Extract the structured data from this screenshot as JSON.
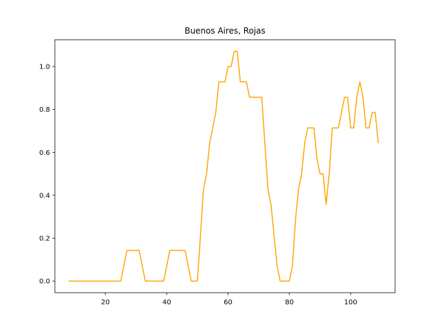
{
  "chart_data": {
    "type": "line",
    "title": "Buenos Aires, Rojas",
    "xlabel": "",
    "ylabel": "",
    "xlim": [
      3.5,
      114.5
    ],
    "ylim": [
      -0.054,
      1.125
    ],
    "xticks": [
      20,
      40,
      60,
      80,
      100
    ],
    "yticks": [
      0.0,
      0.2,
      0.4,
      0.6,
      0.8,
      1.0
    ],
    "ytick_labels": [
      "0.0",
      "0.2",
      "0.4",
      "0.6",
      "0.8",
      "1.0"
    ],
    "xtick_labels": [
      "20",
      "40",
      "60",
      "80",
      "100"
    ],
    "grid": false,
    "series": [
      {
        "color": "#ffa500",
        "x": [
          8,
          9,
          10,
          11,
          12,
          13,
          14,
          15,
          16,
          17,
          18,
          19,
          20,
          21,
          22,
          23,
          24,
          25,
          26,
          27,
          28,
          29,
          30,
          31,
          32,
          33,
          34,
          35,
          36,
          37,
          38,
          39,
          40,
          41,
          42,
          43,
          44,
          45,
          46,
          47,
          48,
          49,
          50,
          51,
          52,
          53,
          54,
          55,
          56,
          57,
          58,
          59,
          60,
          61,
          62,
          63,
          64,
          65,
          66,
          67,
          68,
          69,
          70,
          71,
          72,
          73,
          74,
          75,
          76,
          77,
          78,
          79,
          80,
          81,
          82,
          83,
          84,
          85,
          86,
          87,
          88,
          89,
          90,
          91,
          92,
          93,
          94,
          95,
          96,
          97,
          98,
          99,
          100,
          101,
          102,
          103,
          104,
          105,
          106,
          107,
          108,
          109
        ],
        "values": [
          0,
          0,
          0,
          0,
          0,
          0,
          0,
          0,
          0,
          0,
          0,
          0,
          0,
          0,
          0,
          0,
          0,
          0,
          0.071,
          0.143,
          0.143,
          0.143,
          0.143,
          0.143,
          0.071,
          0,
          0,
          0,
          0,
          0,
          0,
          0,
          0.071,
          0.143,
          0.143,
          0.143,
          0.143,
          0.143,
          0.143,
          0.071,
          0,
          0,
          0,
          0.214,
          0.429,
          0.5,
          0.643,
          0.714,
          0.786,
          0.929,
          0.929,
          0.929,
          1.0,
          1.0,
          1.071,
          1.071,
          0.929,
          0.929,
          0.929,
          0.857,
          0.857,
          0.857,
          0.857,
          0.857,
          0.643,
          0.429,
          0.357,
          0.214,
          0.071,
          0,
          0,
          0,
          0,
          0.071,
          0.286,
          0.429,
          0.5,
          0.643,
          0.714,
          0.714,
          0.714,
          0.571,
          0.5,
          0.5,
          0.357,
          0.5,
          0.714,
          0.714,
          0.714,
          0.786,
          0.857,
          0.857,
          0.714,
          0.714,
          0.857,
          0.929,
          0.857,
          0.714,
          0.714,
          0.786,
          0.786,
          0.643
        ]
      }
    ]
  }
}
